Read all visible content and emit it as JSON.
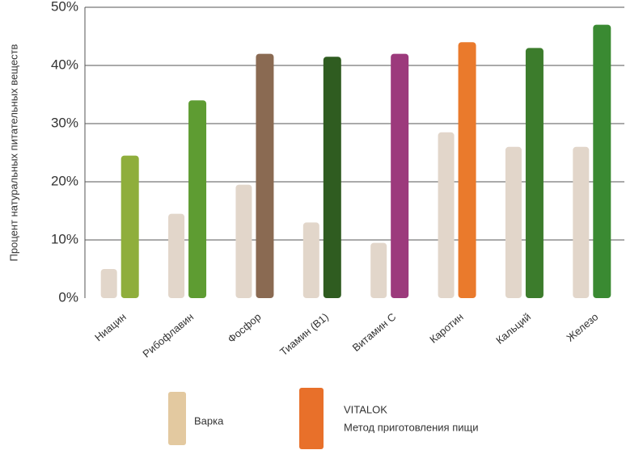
{
  "chart_data": {
    "type": "bar",
    "y_label": "Процент натуральных питательных веществ",
    "categories": [
      "Ниацин",
      "Рибофлавин",
      "Фосфор",
      "Тиамин (B1)",
      "Витамин С",
      "Каротин",
      "Кальций",
      "Железо"
    ],
    "series": [
      {
        "name": "Варка",
        "color": "#e3c9a0",
        "bar_color": "#e2d6ca",
        "values": [
          5,
          14.5,
          19.5,
          13,
          9.5,
          28.5,
          26,
          26
        ]
      },
      {
        "name": "VITALOK",
        "subtitle": "Метод приготовления пищи",
        "color": "#e8702a",
        "colors": [
          "#8fae3c",
          "#5e9c32",
          "#8a6a52",
          "#2f5c20",
          "#9c3a7c",
          "#ea7a2c",
          "#3c7c2c",
          "#3a8a32"
        ],
        "values": [
          24.5,
          34,
          42,
          41.5,
          42,
          44,
          43,
          47
        ]
      }
    ],
    "ylim": [
      0,
      50
    ],
    "yticks": [
      {
        "value": 0,
        "label": "0%"
      },
      {
        "value": 10,
        "label": "10%"
      },
      {
        "value": 20,
        "label": "20%"
      },
      {
        "value": 30,
        "label": "30%"
      },
      {
        "value": 40,
        "label": "40%"
      },
      {
        "value": 50,
        "label": "50%"
      }
    ],
    "grid": true
  }
}
